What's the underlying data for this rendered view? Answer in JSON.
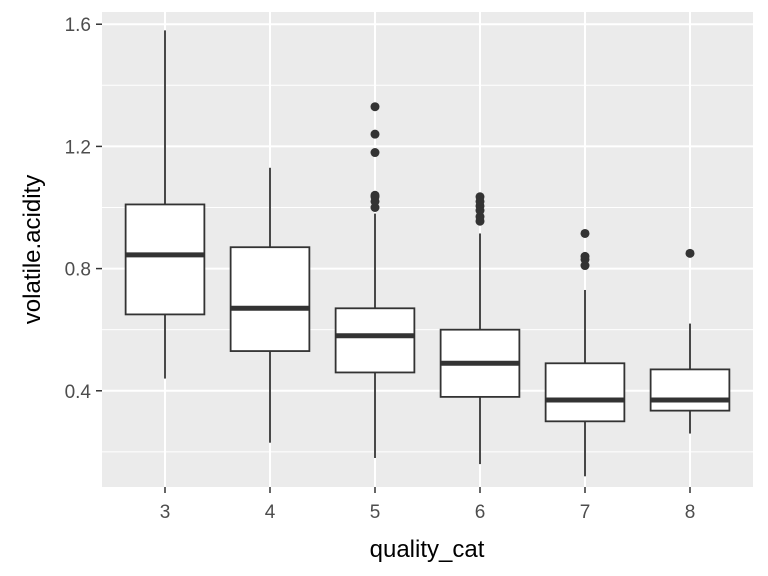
{
  "chart_data": {
    "type": "boxplot",
    "xlabel": "quality_cat",
    "ylabel": "volatile.acidity",
    "categories": [
      "3",
      "4",
      "5",
      "6",
      "7",
      "8"
    ],
    "ylim": [
      0.085,
      1.64
    ],
    "yticks": [
      0.4,
      0.8,
      1.2,
      1.6
    ],
    "ytick_labels": [
      "0.4",
      "0.8",
      "1.2",
      "1.6"
    ],
    "grid": true,
    "legend": "none",
    "colors": {
      "panel": "#ebebeb",
      "grid": "#ffffff",
      "box_fill": "#ffffff",
      "line": "#333333",
      "tick_text": "#4d4d4d"
    },
    "boxes": [
      {
        "category": "3",
        "whisker_low": 0.44,
        "q1": 0.65,
        "median": 0.845,
        "q3": 1.01,
        "whisker_high": 1.58,
        "outliers": []
      },
      {
        "category": "4",
        "whisker_low": 0.23,
        "q1": 0.53,
        "median": 0.67,
        "q3": 0.87,
        "whisker_high": 1.13,
        "outliers": []
      },
      {
        "category": "5",
        "whisker_low": 0.18,
        "q1": 0.46,
        "median": 0.58,
        "q3": 0.67,
        "whisker_high": 0.98,
        "outliers": [
          1.0,
          1.02,
          1.035,
          1.04,
          1.18,
          1.24,
          1.33
        ]
      },
      {
        "category": "6",
        "whisker_low": 0.16,
        "q1": 0.38,
        "median": 0.49,
        "q3": 0.6,
        "whisker_high": 0.915,
        "outliers": [
          0.955,
          0.97,
          0.99,
          1.005,
          1.02,
          1.035
        ]
      },
      {
        "category": "7",
        "whisker_low": 0.12,
        "q1": 0.3,
        "median": 0.37,
        "q3": 0.49,
        "whisker_high": 0.73,
        "outliers": [
          0.81,
          0.83,
          0.84,
          0.915
        ]
      },
      {
        "category": "8",
        "whisker_low": 0.26,
        "q1": 0.335,
        "median": 0.37,
        "q3": 0.47,
        "whisker_high": 0.62,
        "outliers": [
          0.85
        ]
      }
    ]
  }
}
